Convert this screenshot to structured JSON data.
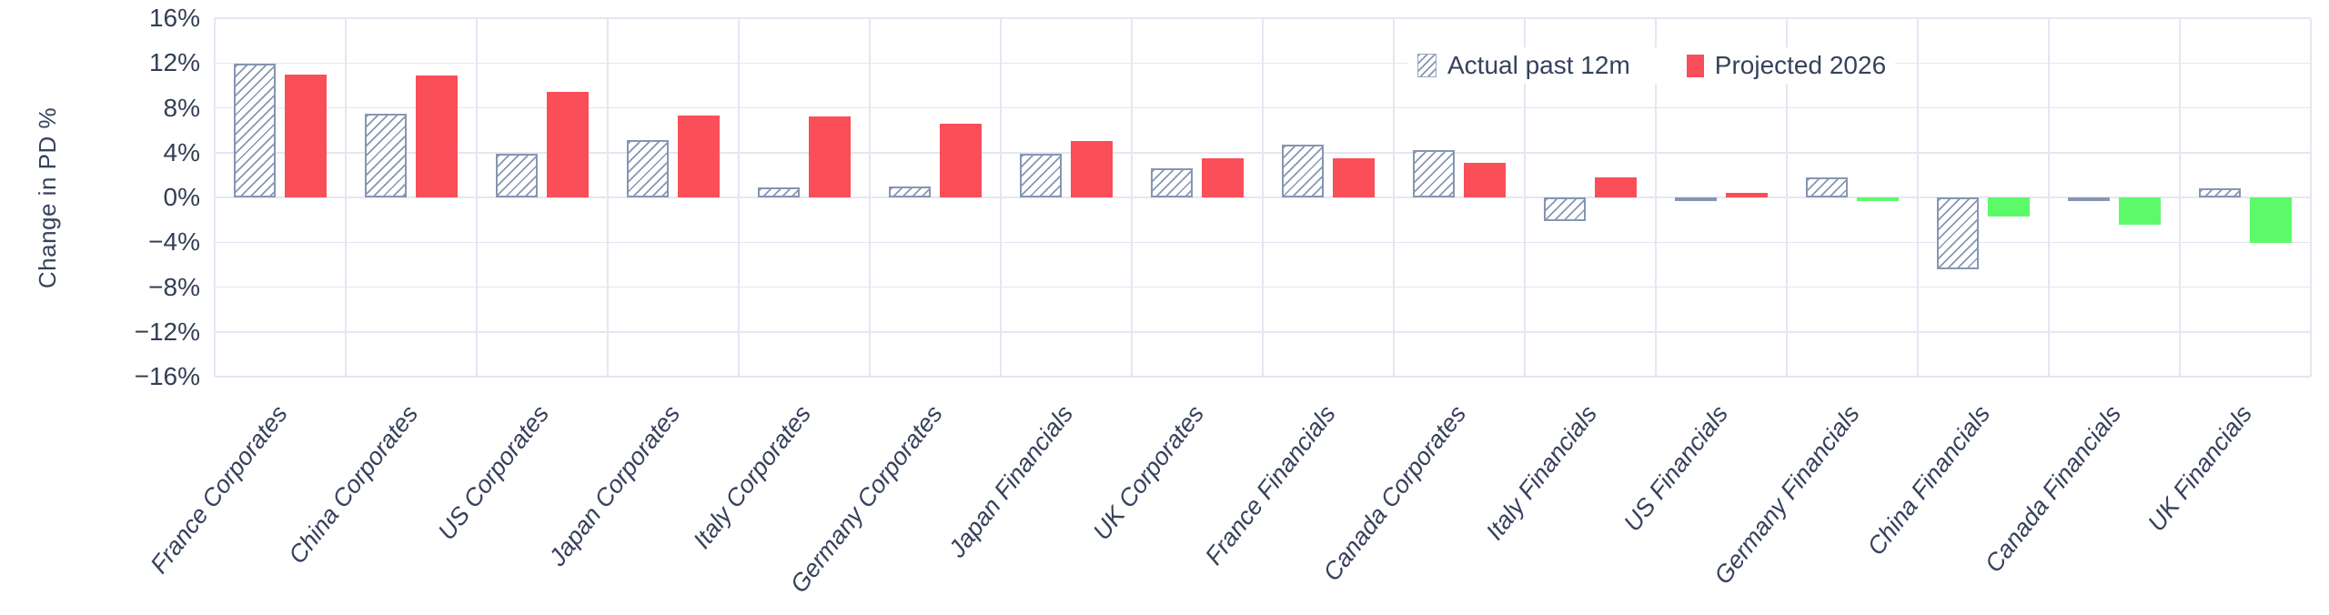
{
  "chart_data": {
    "type": "bar",
    "title": "",
    "xlabel": "",
    "ylabel": "Change in PD %",
    "ylim": [
      -16,
      16
    ],
    "ytick_step": 4,
    "ytick_labels": [
      "16%",
      "12%",
      "8%",
      "4%",
      "0%",
      "−4%",
      "−8%",
      "−12%",
      "−16%"
    ],
    "grid": true,
    "legend_position": "top-right-inside",
    "categories": [
      "France Corporates",
      "China Corporates",
      "US Corporates",
      "Japan Corporates",
      "Italy Corporates",
      "Germany Corporates",
      "Japan Financials",
      "UK Corporates",
      "France Financials",
      "Canada Corporates",
      "Italy Financials",
      "US Financials",
      "Germany Financials",
      "China Financials",
      "Canada Financials",
      "UK Financials"
    ],
    "series": [
      {
        "name": "Actual past 12m",
        "style": "hatched",
        "values": [
          11.9,
          7.5,
          3.9,
          5.1,
          0.9,
          1.0,
          3.9,
          2.6,
          4.7,
          4.2,
          -2.1,
          -0.3,
          1.8,
          -6.4,
          -0.3,
          0.8
        ]
      },
      {
        "name": "Projected 2026",
        "style": "solid",
        "values": [
          11.0,
          10.9,
          9.4,
          7.3,
          7.2,
          6.6,
          5.0,
          3.5,
          3.5,
          3.1,
          1.8,
          0.4,
          -0.3,
          -1.7,
          -2.4,
          -4.1
        ]
      }
    ]
  },
  "colors": {
    "projected_positive": "#fa4e59",
    "projected_negative": "#5cfa69",
    "hatch_line": "#8696b2",
    "grid": "#e4e7f2",
    "text": "#36415c"
  }
}
